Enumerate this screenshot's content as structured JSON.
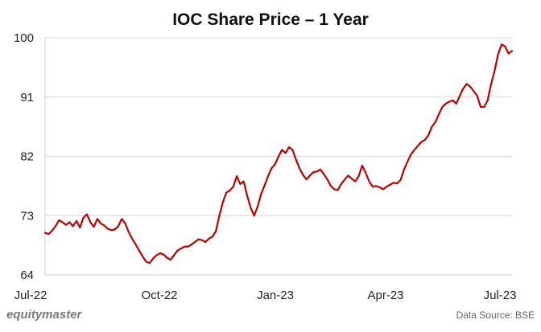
{
  "chart_data": {
    "type": "line",
    "title": "IOC Share Price – 1 Year",
    "xlabel": "",
    "ylabel": "",
    "ylim": [
      64,
      100
    ],
    "yticks": [
      "100",
      "91",
      "82",
      "73",
      "64"
    ],
    "xticks": [
      "Jul-22",
      "Oct-22",
      "Jan-23",
      "Apr-23",
      "Jul-23"
    ],
    "grid": true,
    "series": [
      {
        "color": "#c00000",
        "values": [
          [
            0,
            70.4
          ],
          [
            2,
            70.2
          ],
          [
            4,
            70.7
          ],
          [
            6,
            71.4
          ],
          [
            8,
            72.3
          ],
          [
            10,
            72.0
          ],
          [
            12,
            71.6
          ],
          [
            14,
            72.0
          ],
          [
            16,
            71.4
          ],
          [
            18,
            72.2
          ],
          [
            20,
            71.2
          ],
          [
            22,
            72.7
          ],
          [
            24,
            73.2
          ],
          [
            26,
            72.0
          ],
          [
            28,
            71.3
          ],
          [
            30,
            72.5
          ],
          [
            32,
            71.8
          ],
          [
            34,
            71.5
          ],
          [
            36,
            71.0
          ],
          [
            38,
            70.8
          ],
          [
            40,
            70.9
          ],
          [
            42,
            71.4
          ],
          [
            44,
            72.5
          ],
          [
            46,
            71.8
          ],
          [
            48,
            70.5
          ],
          [
            50,
            69.5
          ],
          [
            52,
            68.6
          ],
          [
            54,
            67.7
          ],
          [
            56,
            66.8
          ],
          [
            58,
            66.0
          ],
          [
            60,
            65.8
          ],
          [
            62,
            66.5
          ],
          [
            64,
            67.0
          ],
          [
            66,
            67.3
          ],
          [
            68,
            67.1
          ],
          [
            70,
            66.6
          ],
          [
            72,
            66.3
          ],
          [
            74,
            67.0
          ],
          [
            76,
            67.7
          ],
          [
            78,
            68.0
          ],
          [
            80,
            68.3
          ],
          [
            82,
            68.3
          ],
          [
            84,
            68.6
          ],
          [
            86,
            69.0
          ],
          [
            88,
            69.4
          ],
          [
            90,
            69.3
          ],
          [
            92,
            69.0
          ],
          [
            94,
            69.5
          ],
          [
            96,
            69.8
          ],
          [
            98,
            70.6
          ],
          [
            100,
            73.0
          ],
          [
            102,
            75.0
          ],
          [
            104,
            76.5
          ],
          [
            106,
            76.8
          ],
          [
            108,
            77.4
          ],
          [
            110,
            79.0
          ],
          [
            112,
            77.8
          ],
          [
            114,
            78.2
          ],
          [
            116,
            76.0
          ],
          [
            118,
            74.2
          ],
          [
            120,
            73.0
          ],
          [
            122,
            74.4
          ],
          [
            124,
            76.3
          ],
          [
            126,
            77.6
          ],
          [
            128,
            79.0
          ],
          [
            130,
            80.2
          ],
          [
            132,
            80.8
          ],
          [
            134,
            82.0
          ],
          [
            136,
            83.0
          ],
          [
            138,
            82.5
          ],
          [
            140,
            83.4
          ],
          [
            142,
            83.0
          ],
          [
            144,
            81.5
          ],
          [
            146,
            80.2
          ],
          [
            148,
            79.2
          ],
          [
            150,
            78.5
          ],
          [
            152,
            79.1
          ],
          [
            154,
            79.6
          ],
          [
            156,
            79.7
          ],
          [
            158,
            80.0
          ],
          [
            160,
            79.3
          ],
          [
            162,
            78.5
          ],
          [
            164,
            77.5
          ],
          [
            166,
            77.0
          ],
          [
            168,
            76.9
          ],
          [
            170,
            77.8
          ],
          [
            172,
            78.5
          ],
          [
            174,
            79.1
          ],
          [
            176,
            78.6
          ],
          [
            178,
            78.2
          ],
          [
            180,
            79.0
          ],
          [
            182,
            80.6
          ],
          [
            184,
            79.5
          ],
          [
            186,
            78.2
          ],
          [
            188,
            77.4
          ],
          [
            190,
            77.5
          ],
          [
            192,
            77.3
          ],
          [
            194,
            77.0
          ],
          [
            196,
            77.4
          ],
          [
            198,
            77.7
          ],
          [
            200,
            78.0
          ],
          [
            202,
            77.9
          ],
          [
            204,
            78.4
          ],
          [
            206,
            80.0
          ],
          [
            208,
            81.2
          ],
          [
            210,
            82.3
          ],
          [
            212,
            83.0
          ],
          [
            214,
            83.6
          ],
          [
            216,
            84.2
          ],
          [
            218,
            84.5
          ],
          [
            220,
            85.2
          ],
          [
            222,
            86.5
          ],
          [
            224,
            87.2
          ],
          [
            226,
            88.4
          ],
          [
            228,
            89.5
          ],
          [
            230,
            90.0
          ],
          [
            232,
            90.3
          ],
          [
            234,
            90.5
          ],
          [
            236,
            90.0
          ],
          [
            238,
            91.2
          ],
          [
            240,
            92.3
          ],
          [
            242,
            93.0
          ],
          [
            244,
            92.6
          ],
          [
            246,
            91.9
          ],
          [
            248,
            91.2
          ],
          [
            250,
            89.5
          ],
          [
            252,
            89.5
          ],
          [
            254,
            90.5
          ],
          [
            256,
            93.0
          ],
          [
            258,
            95.0
          ],
          [
            260,
            97.5
          ],
          [
            262,
            99.0
          ],
          [
            264,
            98.7
          ],
          [
            266,
            97.6
          ],
          [
            268,
            98.0
          ]
        ]
      }
    ]
  },
  "footer": {
    "brand": "equitymaster",
    "source": "Data Source: BSE"
  }
}
